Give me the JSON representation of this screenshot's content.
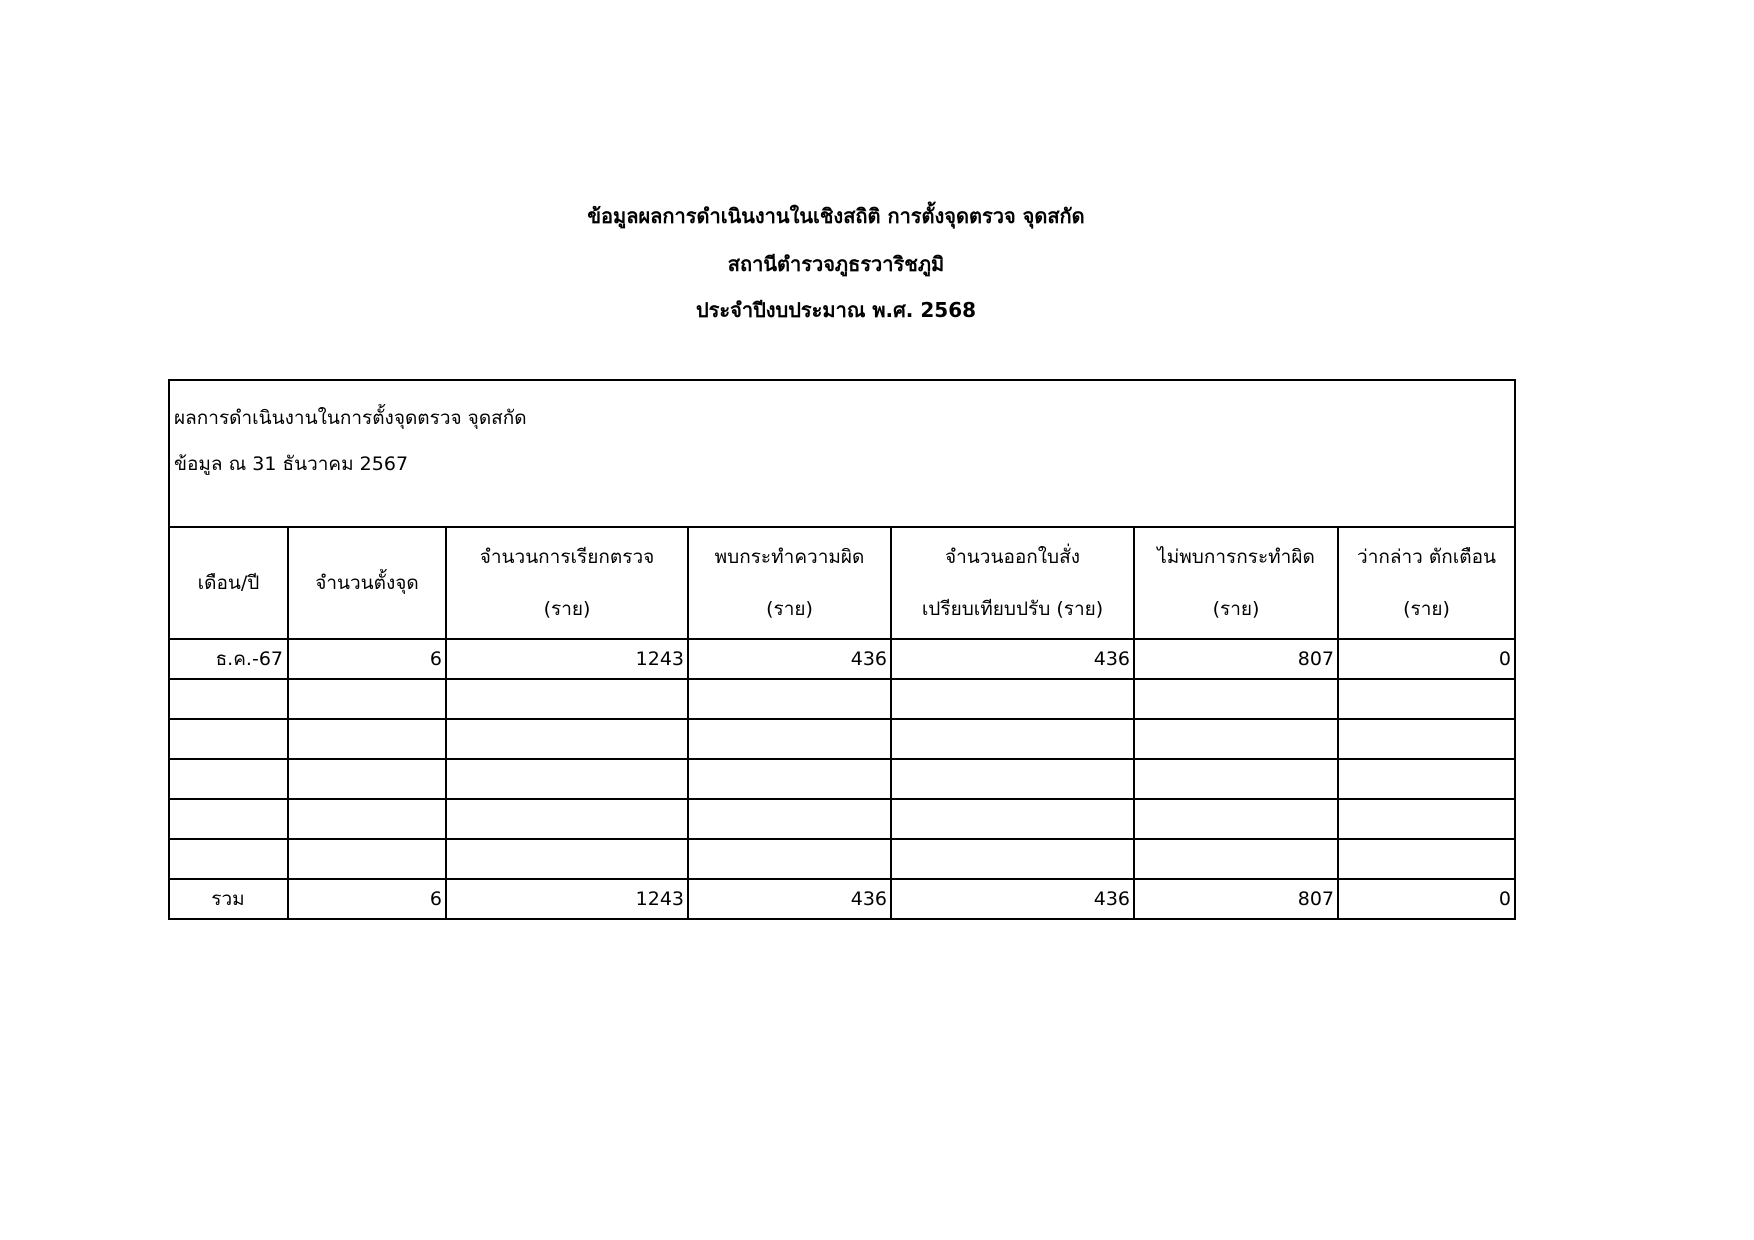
{
  "titles": [
    "ข้อมูลผลการดำเนินงานในเชิงสถิติ การตั้งจุดตรวจ จุดสกัด",
    "สถานีตำรวจภูธรวาริชภูมิ",
    "ประจำปีงบประมาณ พ.ศ. 2568"
  ],
  "table": {
    "caption_line1": "ผลการดำเนินงานในการตั้งจุดตรวจ จุดสกัด",
    "caption_line2": "ข้อมูล ณ 31 ธันวาคม 2567",
    "headers": [
      {
        "l1": "เดือน/ปี",
        "l2": ""
      },
      {
        "l1": "จำนวนตั้งจุด",
        "l2": ""
      },
      {
        "l1": "จำนวนการเรียกตรวจ",
        "l2": "(ราย)"
      },
      {
        "l1": "พบกระทำความผิด",
        "l2": "(ราย)"
      },
      {
        "l1": "จำนวนออกใบสั่ง",
        "l2": "เปรียบเทียบปรับ (ราย)"
      },
      {
        "l1": "ไม่พบการกระทำผิด",
        "l2": "(ราย)"
      },
      {
        "l1": "ว่ากล่าว ตักเตือน",
        "l2": "(ราย)"
      }
    ],
    "rows": [
      [
        "ธ.ค.-67",
        "6",
        "1243",
        "436",
        "436",
        "807",
        "0"
      ],
      [
        "",
        "",
        "",
        "",
        "",
        "",
        ""
      ],
      [
        "",
        "",
        "",
        "",
        "",
        "",
        ""
      ],
      [
        "",
        "",
        "",
        "",
        "",
        "",
        ""
      ],
      [
        "",
        "",
        "",
        "",
        "",
        "",
        ""
      ],
      [
        "",
        "",
        "",
        "",
        "",
        "",
        ""
      ]
    ],
    "total": [
      "รวม",
      "6",
      "1243",
      "436",
      "436",
      "807",
      "0"
    ]
  }
}
